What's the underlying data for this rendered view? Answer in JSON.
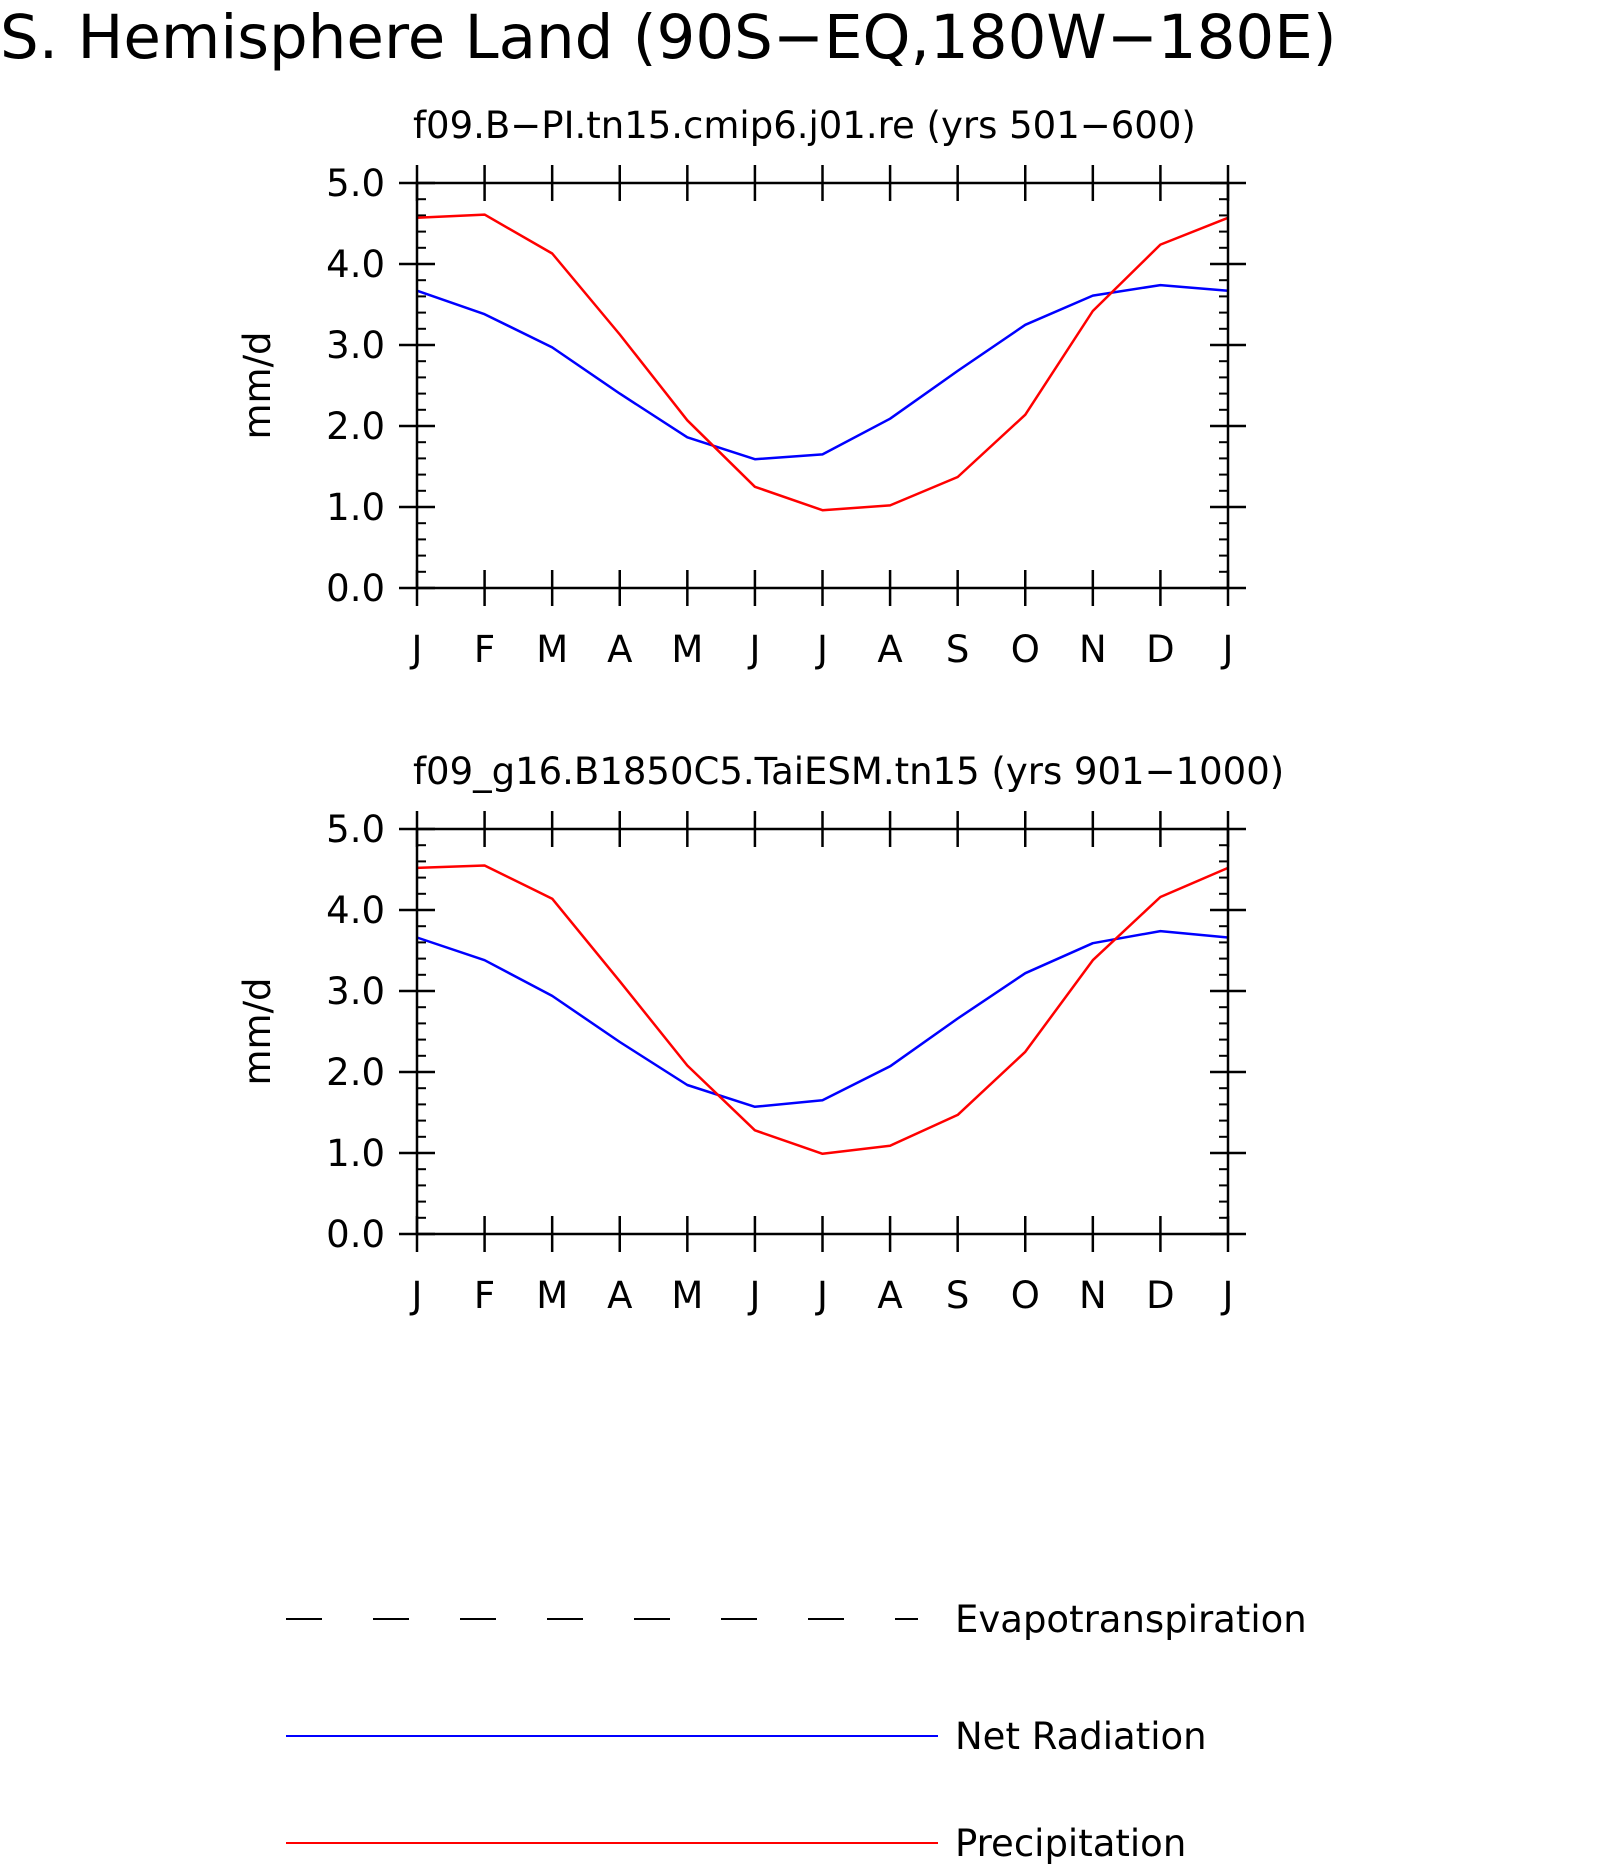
{
  "figure": {
    "title": "S. Hemisphere Land (90S−EQ,180W−180E)"
  },
  "chart_data": [
    {
      "type": "line",
      "title": "f09.B−PI.tn15.cmip6.j01.re (yrs 501−600)",
      "xlabel": "",
      "ylabel": "mm/d",
      "ylim": [
        0,
        5
      ],
      "yticks": [
        "0.0",
        "1.0",
        "2.0",
        "3.0",
        "4.0",
        "5.0"
      ],
      "categories": [
        "J",
        "F",
        "M",
        "A",
        "M",
        "J",
        "J",
        "A",
        "S",
        "O",
        "N",
        "D",
        "J"
      ],
      "grid": false,
      "series": [
        {
          "name": "Net Radiation",
          "color": "#0000ff",
          "values": [
            3.67,
            3.38,
            2.97,
            2.4,
            1.86,
            1.59,
            1.65,
            2.09,
            2.68,
            3.25,
            3.61,
            3.74,
            3.67
          ]
        },
        {
          "name": "Precipitation",
          "color": "#ff0000",
          "values": [
            4.57,
            4.61,
            4.13,
            3.13,
            2.07,
            1.25,
            0.96,
            1.02,
            1.37,
            2.14,
            3.42,
            4.24,
            4.57
          ]
        }
      ]
    },
    {
      "type": "line",
      "title": "f09_g16.B1850C5.TaiESM.tn15 (yrs 901−1000)",
      "xlabel": "",
      "ylabel": "mm/d",
      "ylim": [
        0,
        5
      ],
      "yticks": [
        "0.0",
        "1.0",
        "2.0",
        "3.0",
        "4.0",
        "5.0"
      ],
      "categories": [
        "J",
        "F",
        "M",
        "A",
        "M",
        "J",
        "J",
        "A",
        "S",
        "O",
        "N",
        "D",
        "J"
      ],
      "grid": false,
      "series": [
        {
          "name": "Net Radiation",
          "color": "#0000ff",
          "values": [
            3.66,
            3.38,
            2.94,
            2.37,
            1.84,
            1.57,
            1.65,
            2.07,
            2.66,
            3.22,
            3.59,
            3.74,
            3.66
          ]
        },
        {
          "name": "Precipitation",
          "color": "#ff0000",
          "values": [
            4.52,
            4.55,
            4.14,
            3.12,
            2.08,
            1.28,
            0.99,
            1.09,
            1.47,
            2.25,
            3.38,
            4.16,
            4.52
          ]
        }
      ]
    }
  ],
  "legend": {
    "placement": "bottom",
    "items": [
      {
        "label": "Evapotranspiration",
        "color": "#000000",
        "style": "dashed"
      },
      {
        "label": "Net Radiation",
        "color": "#0000ff",
        "style": "solid"
      },
      {
        "label": "Precipitation",
        "color": "#ff0000",
        "style": "solid"
      }
    ]
  }
}
